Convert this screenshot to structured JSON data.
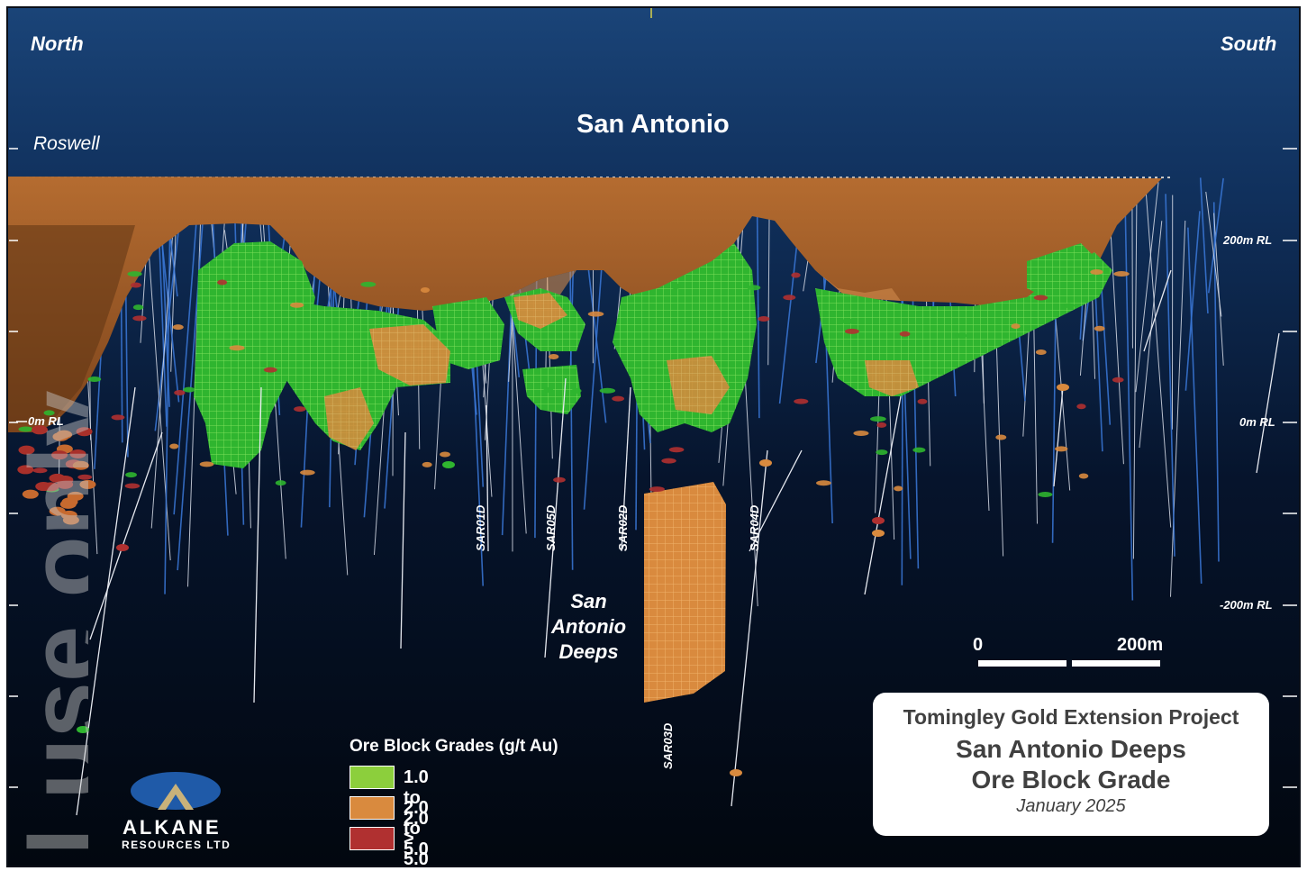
{
  "orientation": {
    "left": "North",
    "right": "South"
  },
  "pit_labels": {
    "main": "San Antonio",
    "secondary": "Roswell"
  },
  "rl_labels_left": [
    {
      "label": "0m RL"
    }
  ],
  "rl_labels_right": [
    {
      "label": "200m RL"
    },
    {
      "label": "0m RL"
    },
    {
      "label": "-200m RL"
    }
  ],
  "drill_holes": [
    "SAR01D",
    "SAR05D",
    "SAR02D",
    "SAR04D",
    "SAR03D"
  ],
  "deeps_label": "San\nAntonio\nDeeps",
  "scale_bar": {
    "start": "0",
    "end": "200m"
  },
  "legend": {
    "title": "Ore Block Grades (g/t Au)",
    "items": [
      {
        "label": "1.0 to 2.0",
        "color": "#8ccf3c"
      },
      {
        "label": "2.0 to 5.0",
        "color": "#d98a3e"
      },
      {
        "label": "> 5.0",
        "color": "#b03030"
      }
    ]
  },
  "title_box": {
    "project": "Tomingley Gold Extension Project",
    "line1": "San Antonio Deeps",
    "line2": "Ore Block Grade",
    "date": "January 2025"
  },
  "logo": {
    "name": "ALKANE",
    "subtitle": "RESOURCES LTD"
  },
  "watermark": "l use only",
  "colors": {
    "sky_top": "#153a6b",
    "sky_bottom": "#030a18",
    "pit": "#a8622b",
    "ore_low": "#2fb52f",
    "ore_mid": "#d98a3e",
    "ore_high": "#b03030",
    "drill_trace": "#3a78d8"
  }
}
